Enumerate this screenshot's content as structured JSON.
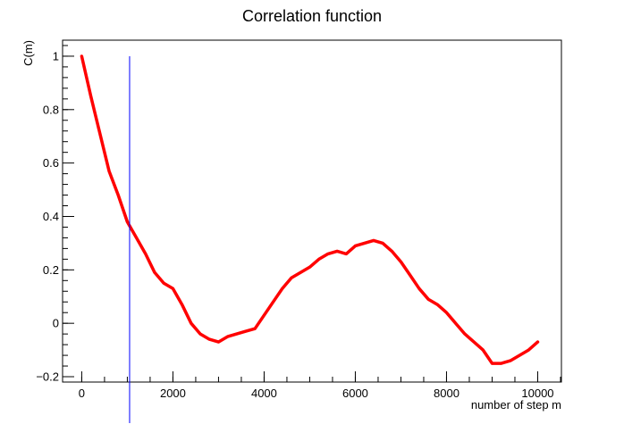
{
  "chart_data": {
    "type": "line",
    "title": "Correlation function",
    "xlabel": "number of step m",
    "ylabel": "C(m)",
    "xlim": [
      -420,
      10520
    ],
    "ylim": [
      -0.22,
      1.06
    ],
    "xticks": [
      0,
      2000,
      4000,
      6000,
      8000,
      10000
    ],
    "xtick_labels": [
      "0",
      "2000",
      "4000",
      "6000",
      "8000",
      "10000"
    ],
    "yticks": [
      -0.2,
      0,
      0.2,
      0.4,
      0.6,
      0.8,
      1
    ],
    "ytick_labels": [
      "−0.2",
      "0",
      "0.2",
      "0.4",
      "0.6",
      "0.8",
      "1"
    ],
    "grid": false,
    "series": [
      {
        "color": "#ff0000",
        "x": [
          0,
          200,
          400,
          600,
          800,
          1000,
          1200,
          1400,
          1600,
          1800,
          2000,
          2200,
          2400,
          2600,
          2800,
          3000,
          3200,
          3400,
          3600,
          3800,
          4000,
          4200,
          4400,
          4600,
          4800,
          5000,
          5200,
          5400,
          5600,
          5800,
          6000,
          6200,
          6400,
          6600,
          6800,
          7000,
          7200,
          7400,
          7600,
          7800,
          8000,
          8200,
          8400,
          8600,
          8800,
          9000,
          9200,
          9400,
          9600,
          9800,
          10000
        ],
        "y": [
          1.0,
          0.85,
          0.71,
          0.57,
          0.48,
          0.38,
          0.32,
          0.26,
          0.19,
          0.15,
          0.13,
          0.07,
          0.0,
          -0.04,
          -0.06,
          -0.07,
          -0.05,
          -0.04,
          -0.03,
          -0.02,
          0.03,
          0.08,
          0.13,
          0.17,
          0.19,
          0.21,
          0.24,
          0.26,
          0.27,
          0.26,
          0.29,
          0.3,
          0.31,
          0.3,
          0.27,
          0.23,
          0.18,
          0.13,
          0.09,
          0.07,
          0.04,
          0.0,
          -0.04,
          -0.07,
          -0.1,
          -0.15,
          -0.15,
          -0.14,
          -0.12,
          -0.1,
          -0.07
        ]
      }
    ],
    "marker_line": {
      "x": 1050,
      "y_top": 1.0,
      "color": "#0000ff"
    }
  }
}
